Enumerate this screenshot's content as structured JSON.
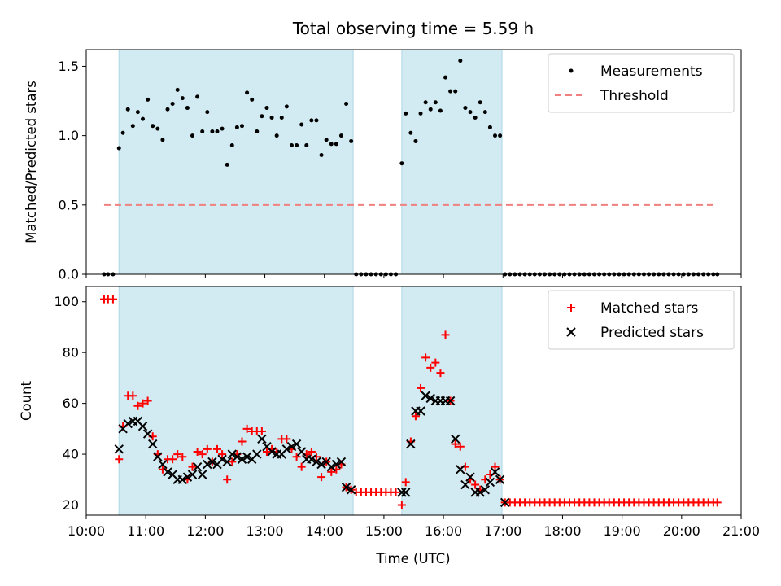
{
  "figure": {
    "title": "Total observing time = 5.59 h",
    "xlabel": "Time (UTC)",
    "x_ticks": [
      "10:00",
      "11:00",
      "12:00",
      "13:00",
      "14:00",
      "15:00",
      "16:00",
      "17:00",
      "18:00",
      "19:00",
      "20:00",
      "21:00"
    ],
    "colors": {
      "shade": "#add8e6",
      "matched": "#ff0000",
      "predicted": "#000000",
      "threshold": "#f08080"
    }
  },
  "chart_data": [
    {
      "type": "scatter",
      "ylabel": "Matched/Predicted stars",
      "xlim": [
        "10:00",
        "21:00"
      ],
      "ylim": [
        0,
        1.62
      ],
      "y_ticks": [
        "0.0",
        "0.5",
        "1.0",
        "1.5"
      ],
      "legend": "top-right",
      "observing_windows": [
        [
          "10:33",
          "14:29"
        ],
        [
          "15:18",
          "16:59"
        ]
      ],
      "threshold": {
        "name": "Threshold",
        "y": 0.5,
        "x_range": [
          "10:18",
          "20:36"
        ]
      },
      "series": [
        {
          "name": "Measurements",
          "marker": "dot",
          "x": [
            "10:18",
            "10:22",
            "10:27",
            "10:33",
            "10:37",
            "10:42",
            "10:47",
            "10:52",
            "10:57",
            "11:02",
            "11:07",
            "11:12",
            "11:17",
            "11:22",
            "11:27",
            "11:32",
            "11:37",
            "11:42",
            "11:47",
            "11:52",
            "11:57",
            "12:02",
            "12:07",
            "12:12",
            "12:17",
            "12:22",
            "12:27",
            "12:32",
            "12:37",
            "12:42",
            "12:47",
            "12:52",
            "12:57",
            "13:02",
            "13:07",
            "13:12",
            "13:17",
            "13:22",
            "13:27",
            "13:32",
            "13:37",
            "13:42",
            "13:47",
            "13:52",
            "13:57",
            "14:02",
            "14:07",
            "14:12",
            "14:17",
            "14:22",
            "14:27",
            "14:32",
            "14:37",
            "14:42",
            "14:47",
            "14:52",
            "14:57",
            "15:02",
            "15:07",
            "15:12",
            "15:18",
            "15:22",
            "15:27",
            "15:32",
            "15:37",
            "15:42",
            "15:47",
            "15:52",
            "15:57",
            "16:02",
            "16:07",
            "16:12",
            "16:17",
            "16:22",
            "16:27",
            "16:32",
            "16:37",
            "16:42",
            "16:47",
            "16:52",
            "16:57",
            "17:02",
            "17:07",
            "17:12",
            "17:17",
            "17:22",
            "17:27",
            "17:32",
            "17:37",
            "17:42",
            "17:47",
            "17:52",
            "17:57",
            "18:02",
            "18:07",
            "18:12",
            "18:17",
            "18:22",
            "18:27",
            "18:32",
            "18:37",
            "18:42",
            "18:47",
            "18:52",
            "18:57",
            "19:02",
            "19:07",
            "19:12",
            "19:17",
            "19:22",
            "19:27",
            "19:32",
            "19:37",
            "19:42",
            "19:47",
            "19:52",
            "19:57",
            "20:02",
            "20:07",
            "20:12",
            "20:17",
            "20:22",
            "20:27",
            "20:32",
            "20:36"
          ],
          "y": [
            0,
            0,
            0,
            0.91,
            1.02,
            1.19,
            1.07,
            1.17,
            1.12,
            1.26,
            1.07,
            1.05,
            0.97,
            1.19,
            1.23,
            1.33,
            1.27,
            1.2,
            1.0,
            1.28,
            1.03,
            1.17,
            1.03,
            1.03,
            1.05,
            0.79,
            0.93,
            1.06,
            1.07,
            1.31,
            1.26,
            1.03,
            1.14,
            1.2,
            1.13,
            1.0,
            1.13,
            1.21,
            0.93,
            0.93,
            1.08,
            0.93,
            1.11,
            1.11,
            0.86,
            0.97,
            0.94,
            0.94,
            1.0,
            1.23,
            0.96,
            0,
            0,
            0,
            0,
            0,
            0,
            0,
            0,
            0,
            0.8,
            1.16,
            1.02,
            0.96,
            1.16,
            1.24,
            1.19,
            1.24,
            1.18,
            1.42,
            1.32,
            1.32,
            1.54,
            1.2,
            1.17,
            1.13,
            1.24,
            1.17,
            1.06,
            1.0,
            1.0,
            0,
            0,
            0,
            0,
            0,
            0,
            0,
            0,
            0,
            0,
            0,
            0,
            0,
            0,
            0,
            0,
            0,
            0,
            0,
            0,
            0,
            0,
            0,
            0,
            0,
            0,
            0,
            0,
            0,
            0,
            0,
            0,
            0,
            0,
            0,
            0,
            0,
            0,
            0,
            0,
            0,
            0,
            0,
            0
          ]
        }
      ]
    },
    {
      "type": "scatter",
      "ylabel": "Count",
      "xlim": [
        "10:00",
        "21:00"
      ],
      "ylim": [
        16,
        106
      ],
      "y_ticks": [
        "20",
        "40",
        "60",
        "80",
        "100"
      ],
      "legend": "top-right",
      "observing_windows": [
        [
          "10:33",
          "14:29"
        ],
        [
          "15:18",
          "16:59"
        ]
      ],
      "series": [
        {
          "name": "Matched stars",
          "marker": "plus",
          "x": [
            "10:18",
            "10:22",
            "10:27",
            "10:33",
            "10:37",
            "10:42",
            "10:47",
            "10:52",
            "10:57",
            "11:02",
            "11:07",
            "11:12",
            "11:17",
            "11:22",
            "11:27",
            "11:32",
            "11:37",
            "11:42",
            "11:47",
            "11:52",
            "11:57",
            "12:02",
            "12:07",
            "12:12",
            "12:17",
            "12:22",
            "12:27",
            "12:32",
            "12:37",
            "12:42",
            "12:47",
            "12:52",
            "12:57",
            "13:02",
            "13:07",
            "13:12",
            "13:17",
            "13:22",
            "13:27",
            "13:32",
            "13:37",
            "13:42",
            "13:47",
            "13:52",
            "13:57",
            "14:02",
            "14:07",
            "14:12",
            "14:17",
            "14:22",
            "14:27",
            "14:32",
            "14:37",
            "14:42",
            "14:47",
            "14:52",
            "14:57",
            "15:02",
            "15:07",
            "15:12",
            "15:18",
            "15:22",
            "15:27",
            "15:32",
            "15:37",
            "15:42",
            "15:47",
            "15:52",
            "15:57",
            "16:02",
            "16:07",
            "16:12",
            "16:17",
            "16:22",
            "16:27",
            "16:32",
            "16:37",
            "16:42",
            "16:47",
            "16:52",
            "16:57",
            "17:02",
            "17:07",
            "17:12",
            "17:17",
            "17:22",
            "17:27",
            "17:32",
            "17:37",
            "17:42",
            "17:47",
            "17:52",
            "17:57",
            "18:02",
            "18:07",
            "18:12",
            "18:17",
            "18:22",
            "18:27",
            "18:32",
            "18:37",
            "18:42",
            "18:47",
            "18:52",
            "18:57",
            "19:02",
            "19:07",
            "19:12",
            "19:17",
            "19:22",
            "19:27",
            "19:32",
            "19:37",
            "19:42",
            "19:47",
            "19:52",
            "19:57",
            "20:02",
            "20:07",
            "20:12",
            "20:17",
            "20:22",
            "20:27",
            "20:32",
            "20:36"
          ],
          "y": [
            101,
            101,
            101,
            38,
            51,
            63,
            63,
            59,
            60,
            61,
            47,
            40,
            34,
            38,
            38,
            40,
            39,
            30,
            35,
            41,
            40,
            42,
            37,
            42,
            40,
            30,
            37,
            40,
            45,
            50,
            49,
            49,
            49,
            41,
            42,
            41,
            46,
            46,
            42,
            39,
            35,
            40,
            41,
            39,
            31,
            37,
            33,
            34,
            36,
            27,
            26,
            25,
            25,
            25,
            25,
            25,
            25,
            25,
            25,
            25,
            20,
            29,
            45,
            55,
            66,
            78,
            74,
            76,
            72,
            87,
            61,
            44,
            43,
            35,
            30,
            28,
            26,
            30,
            32,
            35,
            30,
            21,
            21,
            21,
            21,
            21,
            21,
            21,
            21,
            21,
            21,
            21,
            21,
            21,
            21,
            21,
            21,
            21,
            21,
            21,
            21,
            21,
            21,
            21,
            21,
            21,
            21,
            21,
            21,
            21,
            21,
            21,
            21,
            21,
            21,
            21,
            21,
            21,
            21,
            21,
            21,
            21,
            21,
            21,
            21
          ]
        },
        {
          "name": "Predicted stars",
          "marker": "x",
          "x": [
            "10:33",
            "10:37",
            "10:42",
            "10:47",
            "10:52",
            "10:57",
            "11:02",
            "11:07",
            "11:12",
            "11:17",
            "11:22",
            "11:27",
            "11:32",
            "11:37",
            "11:42",
            "11:47",
            "11:52",
            "11:57",
            "12:02",
            "12:07",
            "12:12",
            "12:17",
            "12:22",
            "12:27",
            "12:32",
            "12:37",
            "12:42",
            "12:47",
            "12:52",
            "12:57",
            "13:02",
            "13:07",
            "13:12",
            "13:17",
            "13:22",
            "13:27",
            "13:32",
            "13:37",
            "13:42",
            "13:47",
            "13:52",
            "13:57",
            "14:02",
            "14:07",
            "14:12",
            "14:17",
            "14:22",
            "14:27",
            "15:18",
            "15:22",
            "15:27",
            "15:32",
            "15:37",
            "15:42",
            "15:47",
            "15:52",
            "15:57",
            "16:02",
            "16:07",
            "16:12",
            "16:17",
            "16:22",
            "16:27",
            "16:32",
            "16:37",
            "16:42",
            "16:47",
            "16:52",
            "16:57",
            "17:02"
          ],
          "y": [
            42,
            50,
            52,
            53,
            53,
            51,
            48,
            44,
            39,
            36,
            33,
            32,
            30,
            30,
            31,
            32,
            35,
            32,
            36,
            37,
            36,
            38,
            37,
            40,
            39,
            38,
            39,
            38,
            40,
            46,
            43,
            41,
            40,
            40,
            42,
            43,
            44,
            41,
            38,
            38,
            37,
            36,
            37,
            35,
            36,
            37,
            27,
            26,
            25,
            25,
            44,
            57,
            57,
            63,
            62,
            61,
            61,
            61,
            61,
            46,
            34,
            28,
            31,
            25,
            25,
            26,
            29,
            33,
            30,
            21
          ]
        }
      ]
    }
  ]
}
